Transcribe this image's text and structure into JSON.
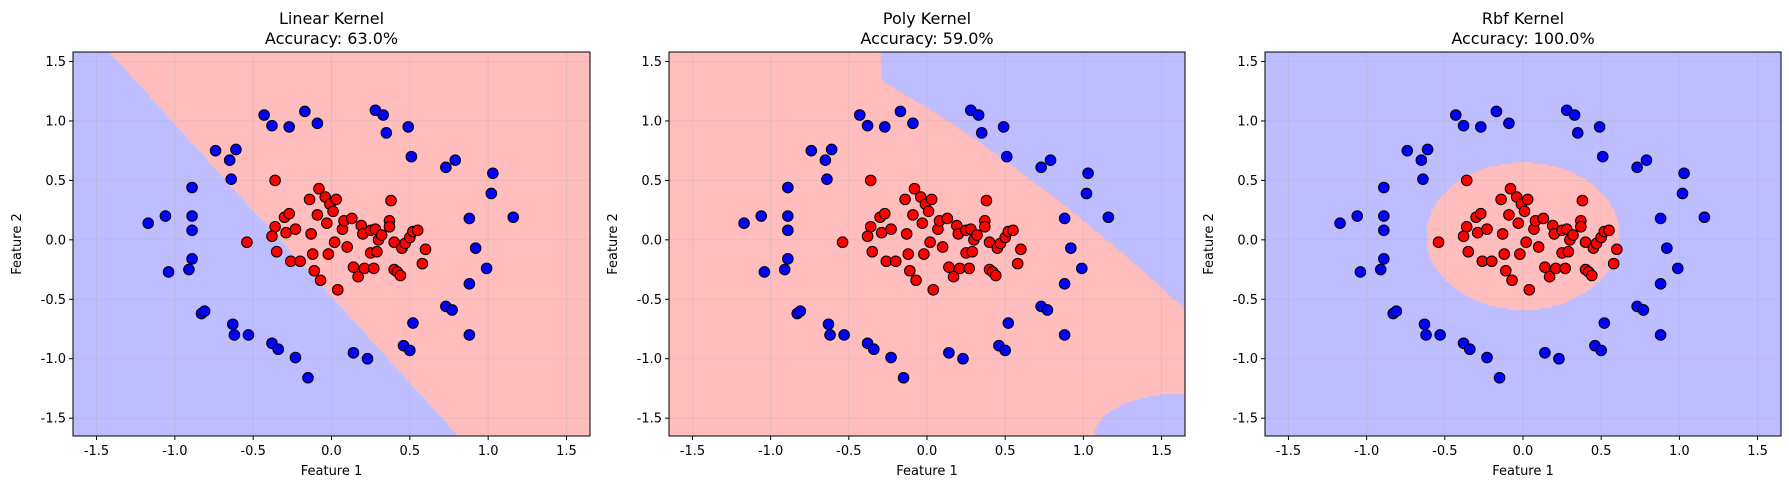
{
  "chart_data": [
    {
      "type": "scatter",
      "title_line1": "Linear Kernel",
      "title_line2": "Accuracy: 63.0%",
      "xlabel": "Feature 1",
      "ylabel": "Feature 2",
      "xlim": [
        -1.65,
        1.65
      ],
      "ylim": [
        -1.65,
        1.58
      ],
      "kernel": "linear",
      "grid": true,
      "region_colors": {
        "class0": "#bdbdff",
        "class1": "#ffbdbd"
      }
    },
    {
      "type": "scatter",
      "title_line1": "Poly Kernel",
      "title_line2": "Accuracy: 59.0%",
      "xlabel": "Feature 1",
      "ylabel": "Feature 2",
      "xlim": [
        -1.65,
        1.65
      ],
      "ylim": [
        -1.65,
        1.58
      ],
      "kernel": "poly",
      "grid": true,
      "region_colors": {
        "class0": "#bdbdff",
        "class1": "#ffbdbd"
      }
    },
    {
      "type": "scatter",
      "title_line1": "Rbf Kernel",
      "title_line2": "Accuracy: 100.0%",
      "xlabel": "Feature 1",
      "ylabel": "Feature 2",
      "xlim": [
        -1.65,
        1.65
      ],
      "ylim": [
        -1.65,
        1.58
      ],
      "kernel": "rbf",
      "grid": true,
      "region_colors": {
        "class0": "#bdbdff",
        "class1": "#ffbdbd"
      }
    }
  ],
  "x_ticks": [
    -1.5,
    -1.0,
    -0.5,
    0.0,
    0.5,
    1.0,
    1.5
  ],
  "y_ticks": [
    -1.5,
    -1.0,
    -0.5,
    0.0,
    0.5,
    1.0,
    1.5
  ],
  "points": {
    "outer_color": "#0000ff",
    "inner_color": "#ff0000",
    "outer": [
      [
        -1.17,
        0.14
      ],
      [
        -1.06,
        0.2
      ],
      [
        -1.04,
        -0.27
      ],
      [
        -0.91,
        -0.25
      ],
      [
        -0.89,
        0.44
      ],
      [
        -0.89,
        0.2
      ],
      [
        -0.89,
        0.08
      ],
      [
        -0.89,
        -0.16
      ],
      [
        -0.83,
        -0.62
      ],
      [
        -0.81,
        -0.6
      ],
      [
        -0.74,
        0.75
      ],
      [
        -0.65,
        0.67
      ],
      [
        -0.64,
        0.51
      ],
      [
        -0.61,
        0.76
      ],
      [
        -0.63,
        -0.71
      ],
      [
        -0.62,
        -0.8
      ],
      [
        -0.53,
        -0.8
      ],
      [
        -0.43,
        1.05
      ],
      [
        -0.38,
        0.96
      ],
      [
        -0.38,
        -0.87
      ],
      [
        -0.34,
        -0.92
      ],
      [
        -0.27,
        0.95
      ],
      [
        -0.23,
        -0.99
      ],
      [
        -0.17,
        1.08
      ],
      [
        -0.15,
        -1.16
      ],
      [
        -0.09,
        0.98
      ],
      [
        0.14,
        -0.95
      ],
      [
        0.23,
        -1.0
      ],
      [
        0.28,
        1.09
      ],
      [
        0.33,
        1.05
      ],
      [
        0.35,
        0.9
      ],
      [
        0.49,
        0.95
      ],
      [
        0.51,
        0.7
      ],
      [
        0.46,
        -0.89
      ],
      [
        0.5,
        -0.93
      ],
      [
        0.52,
        -0.7
      ],
      [
        0.73,
        0.61
      ],
      [
        0.79,
        0.67
      ],
      [
        0.73,
        -0.56
      ],
      [
        0.77,
        -0.59
      ],
      [
        0.88,
        0.18
      ],
      [
        0.88,
        -0.37
      ],
      [
        0.88,
        -0.8
      ],
      [
        0.92,
        -0.07
      ],
      [
        0.99,
        -0.24
      ],
      [
        1.03,
        0.56
      ],
      [
        1.02,
        0.39
      ],
      [
        1.16,
        0.19
      ]
    ],
    "inner": [
      [
        -0.54,
        -0.02
      ],
      [
        -0.36,
        0.5
      ],
      [
        -0.36,
        0.11
      ],
      [
        -0.38,
        0.03
      ],
      [
        -0.35,
        -0.1
      ],
      [
        -0.3,
        0.19
      ],
      [
        -0.27,
        0.22
      ],
      [
        -0.29,
        0.06
      ],
      [
        -0.23,
        0.09
      ],
      [
        -0.26,
        -0.18
      ],
      [
        -0.2,
        -0.18
      ],
      [
        -0.14,
        0.34
      ],
      [
        -0.13,
        0.05
      ],
      [
        -0.12,
        -0.12
      ],
      [
        -0.11,
        -0.26
      ],
      [
        -0.09,
        0.21
      ],
      [
        -0.07,
        -0.34
      ],
      [
        -0.08,
        0.43
      ],
      [
        -0.04,
        0.36
      ],
      [
        -0.03,
        0.14
      ],
      [
        -0.01,
        0.3
      ],
      [
        -0.02,
        -0.12
      ],
      [
        0.01,
        0.24
      ],
      [
        0.02,
        -0.02
      ],
      [
        0.03,
        0.34
      ],
      [
        0.04,
        -0.42
      ],
      [
        0.07,
        0.09
      ],
      [
        0.08,
        0.16
      ],
      [
        0.1,
        -0.06
      ],
      [
        0.13,
        0.18
      ],
      [
        0.14,
        -0.23
      ],
      [
        0.17,
        -0.31
      ],
      [
        0.19,
        0.12
      ],
      [
        0.2,
        0.05
      ],
      [
        0.21,
        -0.24
      ],
      [
        0.25,
        0.08
      ],
      [
        0.25,
        -0.11
      ],
      [
        0.27,
        -0.24
      ],
      [
        0.28,
        0.09
      ],
      [
        0.29,
        -0.1
      ],
      [
        0.3,
        0.0
      ],
      [
        0.32,
        0.04
      ],
      [
        0.37,
        0.16
      ],
      [
        0.37,
        0.11
      ],
      [
        0.38,
        0.33
      ],
      [
        0.4,
        -0.02
      ],
      [
        0.4,
        -0.25
      ],
      [
        0.42,
        -0.27
      ],
      [
        0.44,
        -0.3
      ],
      [
        0.45,
        -0.07
      ],
      [
        0.47,
        -0.03
      ],
      [
        0.5,
        0.02
      ],
      [
        0.52,
        0.07
      ],
      [
        0.55,
        0.08
      ],
      [
        0.58,
        -0.2
      ],
      [
        0.6,
        -0.08
      ]
    ]
  }
}
